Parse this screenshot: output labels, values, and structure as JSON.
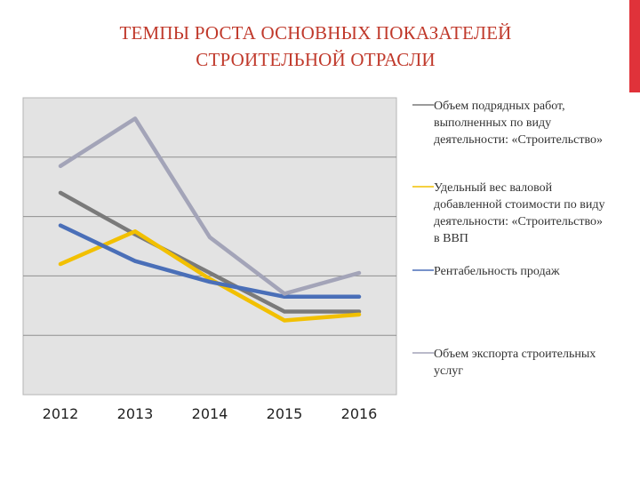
{
  "slide": {
    "accent_color": "#e0323a",
    "title_line1": "ТЕМПЫ РОСТА ОСНОВНЫХ ПОКАЗАТЕЛЕЙ",
    "title_line2": "СТРОИТЕЛЬНОЙ ОТРАСЛИ",
    "title_color": "#c0392b"
  },
  "chart_data": {
    "type": "line",
    "x": [
      "2012",
      "2013",
      "2014",
      "2015",
      "2016"
    ],
    "ylim": [
      0,
      100
    ],
    "grid": true,
    "plot_background": "#e3e3e3",
    "legend_position": "right",
    "series": [
      {
        "name": "Объем подрядных работ, выполненных по виду деятельности: «Строительство»",
        "color": "#7a7a7a",
        "values": [
          68,
          54,
          41,
          28,
          28
        ]
      },
      {
        "name": "Удельный вес валовой добавленной стоимости по виду деятельности: «Строительство» в ВВП",
        "color": "#f2c000",
        "values": [
          44,
          55,
          39,
          25,
          27
        ]
      },
      {
        "name": "Рентабельность продаж",
        "color": "#4a6fb8",
        "values": [
          57,
          45,
          38,
          33,
          33
        ]
      },
      {
        "name": "Объем экспорта строительных услуг",
        "color": "#a3a4b8",
        "values": [
          77,
          93,
          53,
          34,
          41
        ]
      }
    ]
  }
}
